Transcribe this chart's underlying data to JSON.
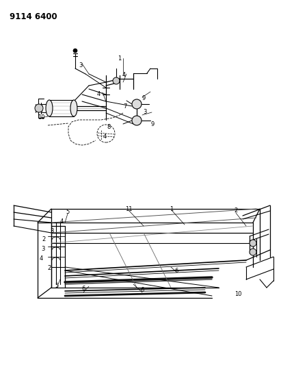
{
  "title": "9114 6400",
  "bg_color": "#ffffff",
  "fg_color": "#000000",
  "title_fontsize": 8.5,
  "label_fontsize": 6.0,
  "fig_width": 4.11,
  "fig_height": 5.33,
  "dpi": 100,
  "top_labels": [
    [
      118,
      96,
      "3"
    ],
    [
      175,
      85,
      "1"
    ],
    [
      181,
      110,
      "4"
    ],
    [
      144,
      137,
      "4"
    ],
    [
      183,
      155,
      "7"
    ],
    [
      210,
      143,
      "9"
    ],
    [
      212,
      163,
      "3"
    ],
    [
      223,
      182,
      "9"
    ],
    [
      159,
      186,
      "8"
    ],
    [
      153,
      200,
      "4"
    ],
    [
      60,
      172,
      "10"
    ]
  ],
  "bot_labels": [
    [
      99,
      310,
      "5"
    ],
    [
      90,
      323,
      "4"
    ],
    [
      76,
      337,
      "3"
    ],
    [
      64,
      350,
      "2"
    ],
    [
      63,
      363,
      "3"
    ],
    [
      60,
      378,
      "4"
    ],
    [
      72,
      392,
      "2"
    ],
    [
      83,
      418,
      "5"
    ],
    [
      122,
      422,
      "6"
    ],
    [
      208,
      423,
      "6"
    ],
    [
      188,
      305,
      "11"
    ],
    [
      251,
      305,
      "1"
    ],
    [
      345,
      308,
      "2"
    ],
    [
      348,
      430,
      "10"
    ],
    [
      258,
      395,
      "6"
    ]
  ]
}
